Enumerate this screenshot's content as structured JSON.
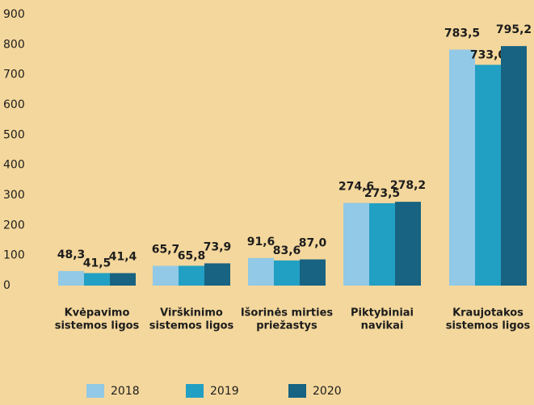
{
  "chart_data": {
    "type": "bar",
    "categories": [
      [
        "Kvėpavimo",
        "sistemos ligos"
      ],
      [
        "Virškinimo",
        "sistemos ligos"
      ],
      [
        "Išorinės mirties",
        "priežastys"
      ],
      [
        "Piktybiniai",
        "navikai"
      ],
      [
        "Kraujotakos",
        "sistemos ligos"
      ]
    ],
    "series": [
      {
        "name": "2018",
        "color": "#92c9e6",
        "values": [
          48.3,
          65.7,
          91.6,
          274.6,
          783.5
        ],
        "value_labels": [
          "48,3",
          "65,7",
          "91,6",
          "274,6",
          "783,5"
        ]
      },
      {
        "name": "2019",
        "color": "#22a0c3",
        "values": [
          41.5,
          65.8,
          83.6,
          273.5,
          733.0
        ],
        "value_labels": [
          "41,5",
          "65,8",
          "83,6",
          "273,5",
          "733,0"
        ]
      },
      {
        "name": "2020",
        "color": "#176381",
        "values": [
          41.4,
          73.9,
          87.0,
          278.2,
          795.2
        ],
        "value_labels": [
          "41,4",
          "73,9",
          "87,0",
          "278,2",
          "795,2"
        ]
      }
    ],
    "ylim": [
      0,
      900
    ],
    "yticks": [
      0,
      100,
      200,
      300,
      400,
      500,
      600,
      700,
      800,
      900
    ],
    "grid": false,
    "legend": "bottom"
  }
}
